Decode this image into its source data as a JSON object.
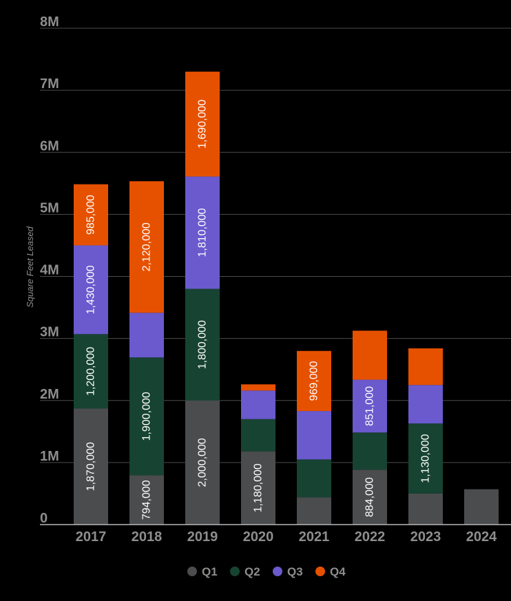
{
  "chart_data": {
    "type": "bar",
    "stacked": true,
    "title": "",
    "xlabel": "",
    "ylabel": "Square Feet Leased",
    "ylim": [
      0,
      8000000
    ],
    "yticks": [
      0,
      1000000,
      2000000,
      3000000,
      4000000,
      5000000,
      6000000,
      7000000,
      8000000
    ],
    "ytick_labels": [
      "0",
      "1M",
      "2M",
      "3M",
      "4M",
      "5M",
      "6M",
      "7M",
      "8M"
    ],
    "grid": true,
    "legend_position": "bottom-center",
    "categories": [
      "2017",
      "2018",
      "2019",
      "2020",
      "2021",
      "2022",
      "2023",
      "2024"
    ],
    "series": [
      {
        "name": "Q1",
        "color": "#4b4c4e",
        "values": [
          1870000,
          794000,
          2000000,
          1180000,
          440000,
          884000,
          500000,
          570000
        ],
        "labels": [
          "1,870,000",
          "794,000",
          "2,000,000",
          "1,180,000",
          "",
          "884,000",
          "",
          ""
        ]
      },
      {
        "name": "Q2",
        "color": "#174332",
        "values": [
          1200000,
          1900000,
          1800000,
          520000,
          610000,
          600000,
          1130000,
          0
        ],
        "labels": [
          "1,200,000",
          "1,900,000",
          "1,800,000",
          "",
          "",
          "",
          "1,130,000",
          ""
        ]
      },
      {
        "name": "Q3",
        "color": "#6a5acd",
        "values": [
          1430000,
          720000,
          1810000,
          460000,
          780000,
          851000,
          620000,
          0
        ],
        "labels": [
          "1,430,000",
          "",
          "1,810,000",
          "",
          "",
          "851,000",
          "",
          ""
        ]
      },
      {
        "name": "Q4",
        "color": "#e65100",
        "values": [
          985000,
          2120000,
          1690000,
          100000,
          969000,
          790000,
          590000,
          0
        ],
        "labels": [
          "985,000",
          "2,120,000",
          "1,690,000",
          "",
          "969,000",
          "",
          "",
          ""
        ]
      }
    ]
  }
}
